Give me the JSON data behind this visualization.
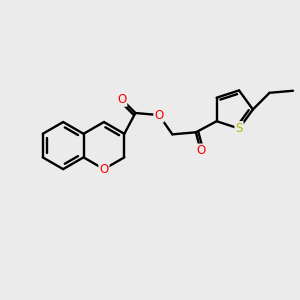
{
  "background_color": "#ebebeb",
  "bond_color": "#000000",
  "O_color": "#ff0000",
  "S_color": "#b8b800",
  "line_width": 1.7,
  "figsize": [
    3.0,
    3.0
  ],
  "dpi": 100,
  "xlim": [
    0,
    10
  ],
  "ylim": [
    0,
    10
  ]
}
